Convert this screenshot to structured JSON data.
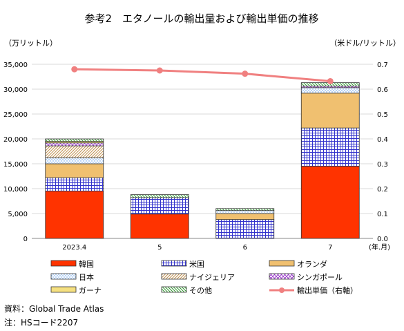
{
  "chart_data": {
    "type": "bar",
    "title": "参考2　エタノールの輸出量および輸出単価の推移",
    "ylabel_left": "（万リットル）",
    "ylabel_right": "（米ドル/リットル）",
    "xlabel": "(年.月)",
    "categories": [
      "2023.4",
      "5",
      "6",
      "7"
    ],
    "ylim_left": [
      0,
      35000
    ],
    "ylim_right": [
      0,
      0.7
    ],
    "left_ticks": [
      "0",
      "5,000",
      "10,000",
      "15,000",
      "20,000",
      "25,000",
      "30,000",
      "35,000"
    ],
    "right_ticks": [
      "0.0",
      "0.1",
      "0.2",
      "0.3",
      "0.4",
      "0.5",
      "0.6",
      "0.7"
    ],
    "grid": true,
    "legend_position": "bottom",
    "series": [
      {
        "name": "韓国",
        "color": "#ff3300",
        "pattern": "solid",
        "values": [
          9500,
          4900,
          0,
          14500
        ]
      },
      {
        "name": "米国",
        "color": "#3333cc",
        "pattern": "grid",
        "values": [
          2700,
          3300,
          3800,
          7700
        ]
      },
      {
        "name": "オランダ",
        "color": "#f0c070",
        "pattern": "solid",
        "values": [
          2800,
          0,
          1200,
          7000
        ]
      },
      {
        "name": "日本",
        "color": "#5599ee",
        "pattern": "dots",
        "values": [
          1200,
          0,
          600,
          1100
        ]
      },
      {
        "name": "ナイジェリア",
        "color": "#d0a060",
        "pattern": "diag",
        "values": [
          2400,
          0,
          0,
          0
        ]
      },
      {
        "name": "シンガポール",
        "color": "#9933cc",
        "pattern": "cross",
        "values": [
          600,
          0,
          0,
          300
        ]
      },
      {
        "name": "ガーナ",
        "color": "#f5e080",
        "pattern": "solid",
        "values": [
          300,
          0,
          0,
          0
        ]
      },
      {
        "name": "その他",
        "color": "#339933",
        "pattern": "diag",
        "values": [
          500,
          600,
          400,
          700
        ]
      }
    ],
    "line": {
      "name": "輸出単価（右軸）",
      "color": "#f08080",
      "values": [
        0.68,
        0.675,
        0.662,
        0.632
      ]
    }
  },
  "footer": {
    "source": "資料：Global Trade Atlas",
    "note": "注：HSコード2207"
  }
}
